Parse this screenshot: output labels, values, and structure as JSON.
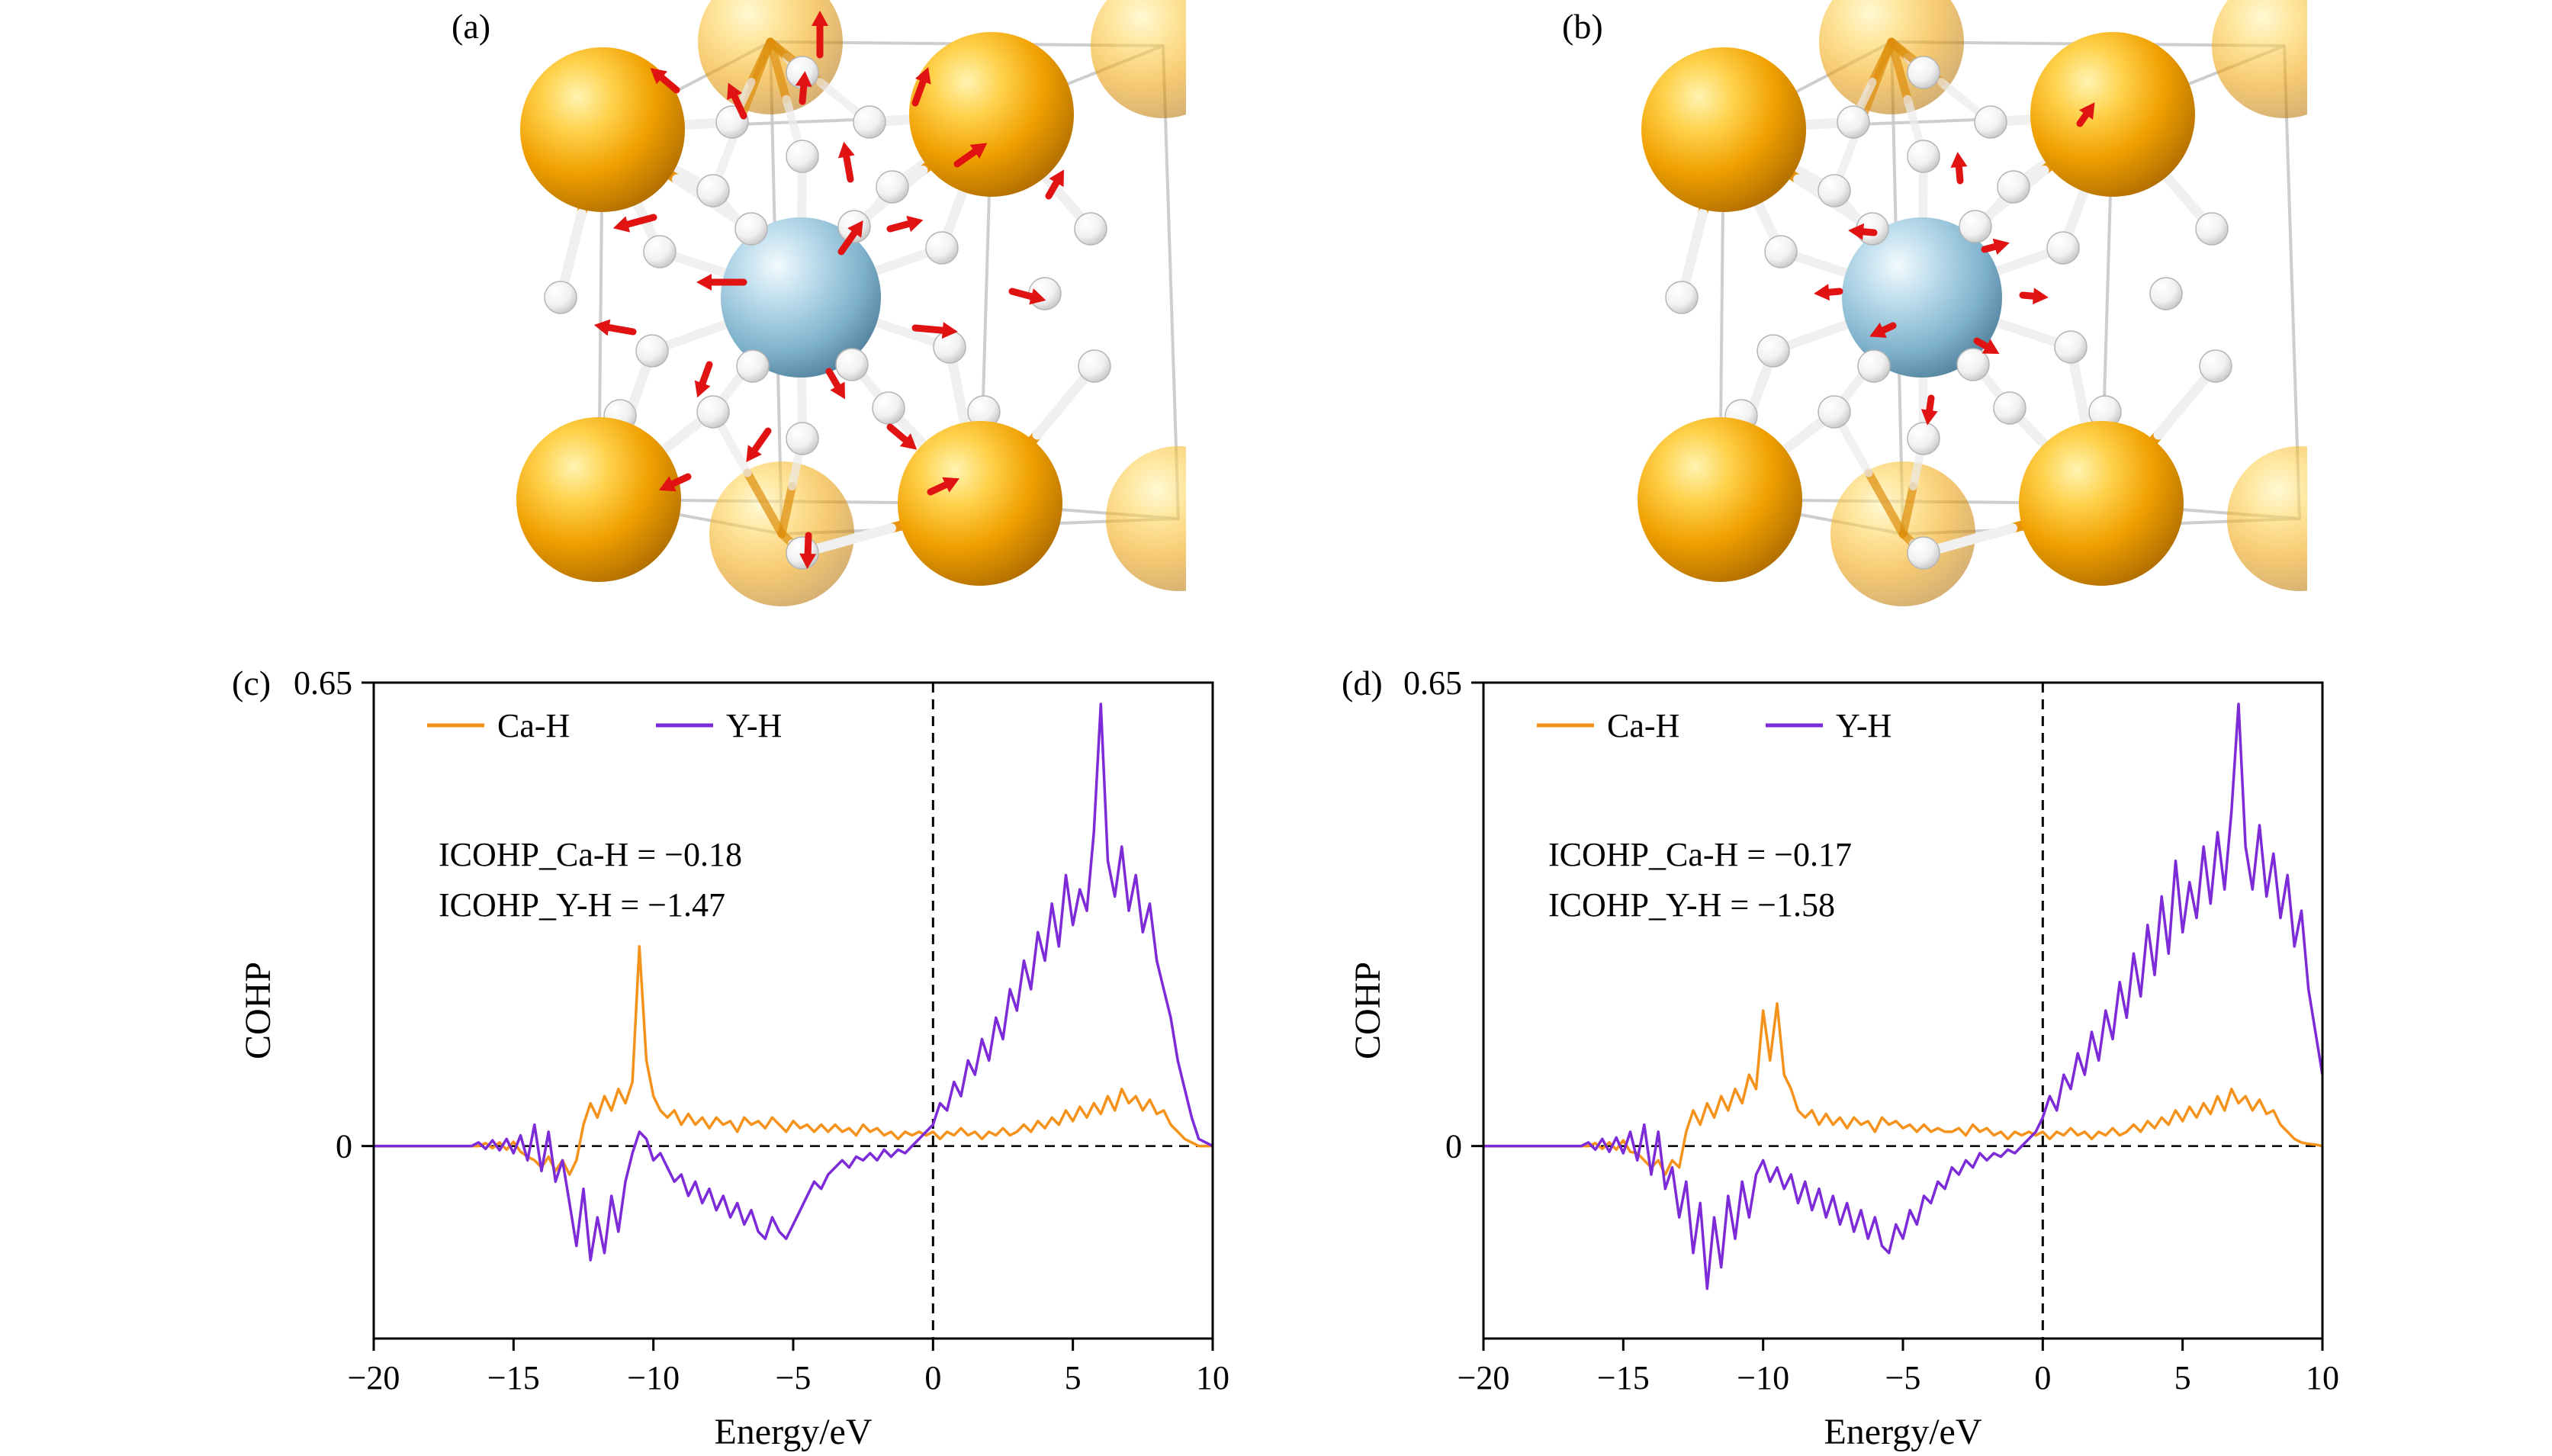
{
  "figure": {
    "background": "#FFFFFF"
  },
  "panels": {
    "a": {
      "label": "(a)"
    },
    "b": {
      "label": "(b)"
    }
  },
  "structures": {
    "atom_colors": {
      "ca": "#F0A000",
      "y": "#8FBFD9",
      "h": "#FFFFFF",
      "force_arrow": "#E01212",
      "frame": "#C9C9C9"
    },
    "shared_geometry": {
      "ca_front": [
        [
          235,
          170
        ],
        [
          745,
          150
        ],
        [
          230,
          655
        ],
        [
          730,
          660
        ]
      ],
      "ca_back": [
        [
          455,
          55
        ],
        [
          970,
          60
        ],
        [
          470,
          700
        ],
        [
          990,
          680
        ]
      ],
      "y_center": [
        495,
        390
      ],
      "h_atoms": [
        [
          497,
          205
        ],
        [
          380,
          250
        ],
        [
          615,
          245
        ],
        [
          310,
          330
        ],
        [
          680,
          325
        ],
        [
          300,
          460
        ],
        [
          690,
          455
        ],
        [
          380,
          540
        ],
        [
          610,
          535
        ],
        [
          497,
          575
        ],
        [
          430,
          300
        ],
        [
          565,
          297
        ],
        [
          432,
          480
        ],
        [
          562,
          478
        ],
        [
          497,
          95
        ],
        [
          180,
          390
        ],
        [
          815,
          385
        ],
        [
          497,
          725
        ],
        [
          255,
          240
        ],
        [
          740,
          235
        ],
        [
          258,
          545
        ],
        [
          735,
          540
        ],
        [
          875,
          300
        ],
        [
          880,
          480
        ],
        [
          585,
          160
        ],
        [
          405,
          160
        ]
      ],
      "radii": {
        "ca": 108,
        "ca_back": 95,
        "y": 105,
        "h": 21
      }
    },
    "a": {
      "arrows": [
        [
          520,
          72,
          90,
          58
        ],
        [
          645,
          135,
          70,
          50
        ],
        [
          420,
          152,
          115,
          48
        ],
        [
          332,
          118,
          140,
          45
        ],
        [
          700,
          215,
          35,
          48
        ],
        [
          560,
          235,
          100,
          50
        ],
        [
          302,
          285,
          195,
          55
        ],
        [
          420,
          370,
          180,
          62
        ],
        [
          548,
          330,
          55,
          50
        ],
        [
          612,
          300,
          15,
          45
        ],
        [
          275,
          435,
          170,
          52
        ],
        [
          645,
          430,
          355,
          56
        ],
        [
          375,
          478,
          250,
          46
        ],
        [
          532,
          487,
          300,
          42
        ],
        [
          452,
          565,
          235,
          50
        ],
        [
          612,
          560,
          320,
          46
        ],
        [
          347,
          625,
          205,
          42
        ],
        [
          665,
          645,
          25,
          42
        ],
        [
          505,
          702,
          268,
          44
        ],
        [
          772,
          382,
          345,
          46
        ],
        [
          497,
          133,
          85,
          40
        ],
        [
          820,
          257,
          60,
          40
        ]
      ]
    },
    "b": {
      "arrows": [
        [
          545,
          237,
          95,
          38
        ],
        [
          432,
          305,
          175,
          34
        ],
        [
          577,
          327,
          15,
          34
        ],
        [
          457,
          427,
          205,
          34
        ],
        [
          567,
          447,
          330,
          34
        ],
        [
          507,
          522,
          262,
          36
        ],
        [
          627,
          387,
          355,
          34
        ],
        [
          387,
          382,
          185,
          34
        ],
        [
          702,
          162,
          55,
          34
        ]
      ]
    }
  },
  "chart_data": [
    {
      "id": "chart-c",
      "panel_label": "(c)",
      "type": "line",
      "title": "",
      "xlabel": "Energy/eV",
      "ylabel": "COHP",
      "xlim": [
        -20,
        10
      ],
      "ylim": [
        -0.27,
        0.65
      ],
      "xticks": [
        -20,
        -15,
        -10,
        -5,
        0,
        5,
        10
      ],
      "xtick_labels": [
        "−20",
        "−15",
        "−10",
        "−5",
        "0",
        "5",
        "10"
      ],
      "yticks": [
        {
          "value": 0,
          "label": "0"
        },
        {
          "value": 0.65,
          "label": "0.65"
        }
      ],
      "grid": false,
      "legend_position": "top-left-inside",
      "reference_lines": {
        "vline_x": 0,
        "hline_y": 0
      },
      "legend": [
        {
          "name": "Ca-H",
          "color": "#F5921B"
        },
        {
          "name": "Y-H",
          "color": "#7D2BD8"
        }
      ],
      "annotations": [
        "ICOHP_Ca-H = −0.18",
        "ICOHP_Y-H = −1.47"
      ],
      "x": [
        -20,
        -18,
        -16.5,
        -16.25,
        -16,
        -15.75,
        -15.5,
        -15.25,
        -15,
        -14.75,
        -14.5,
        -14.25,
        -14,
        -13.75,
        -13.5,
        -13.25,
        -13,
        -12.75,
        -12.5,
        -12.25,
        -12,
        -11.75,
        -11.5,
        -11.25,
        -11,
        -10.75,
        -10.5,
        -10.25,
        -10,
        -9.75,
        -9.5,
        -9.25,
        -9,
        -8.75,
        -8.5,
        -8.25,
        -8,
        -7.75,
        -7.5,
        -7.25,
        -7,
        -6.75,
        -6.5,
        -6.25,
        -6,
        -5.75,
        -5.5,
        -5.25,
        -5,
        -4.75,
        -4.5,
        -4.25,
        -4,
        -3.75,
        -3.5,
        -3.25,
        -3,
        -2.75,
        -2.5,
        -2.25,
        -2,
        -1.75,
        -1.5,
        -1.25,
        -1,
        -0.75,
        -0.5,
        -0.25,
        0,
        0.25,
        0.5,
        0.75,
        1,
        1.25,
        1.5,
        1.75,
        2,
        2.25,
        2.5,
        2.75,
        3,
        3.25,
        3.5,
        3.75,
        4,
        4.25,
        4.5,
        4.75,
        5,
        5.25,
        5.5,
        5.75,
        6,
        6.25,
        6.5,
        6.75,
        7,
        7.25,
        7.5,
        7.75,
        8,
        8.25,
        8.5,
        8.75,
        9,
        9.25,
        9.5,
        9.75,
        10
      ],
      "series": [
        {
          "name": "Ca-H",
          "color": "#F5921B",
          "y": [
            0,
            0,
            0,
            0,
            0.004,
            -0.003,
            0.005,
            -0.005,
            0.006,
            -0.008,
            -0.015,
            -0.02,
            -0.03,
            -0.015,
            -0.035,
            -0.02,
            -0.04,
            -0.02,
            0.03,
            0.06,
            0.04,
            0.07,
            0.05,
            0.08,
            0.06,
            0.09,
            0.28,
            0.12,
            0.07,
            0.05,
            0.04,
            0.05,
            0.03,
            0.045,
            0.03,
            0.04,
            0.025,
            0.04,
            0.03,
            0.035,
            0.02,
            0.04,
            0.03,
            0.035,
            0.025,
            0.04,
            0.03,
            0.02,
            0.035,
            0.025,
            0.03,
            0.02,
            0.03,
            0.02,
            0.03,
            0.02,
            0.025,
            0.015,
            0.03,
            0.02,
            0.025,
            0.015,
            0.02,
            0.01,
            0.02,
            0.015,
            0.02,
            0.015,
            0.02,
            0.01,
            0.02,
            0.015,
            0.025,
            0.015,
            0.02,
            0.01,
            0.02,
            0.015,
            0.025,
            0.015,
            0.02,
            0.03,
            0.02,
            0.035,
            0.025,
            0.04,
            0.03,
            0.05,
            0.035,
            0.055,
            0.04,
            0.06,
            0.045,
            0.07,
            0.05,
            0.08,
            0.06,
            0.07,
            0.05,
            0.065,
            0.045,
            0.05,
            0.03,
            0.02,
            0.01,
            0.005,
            0,
            0,
            0
          ]
        },
        {
          "name": "Y-H",
          "color": "#7D2BD8",
          "y": [
            0,
            0,
            0,
            0.005,
            -0.004,
            0.008,
            -0.006,
            0.01,
            -0.01,
            0.015,
            -0.02,
            0.03,
            -0.035,
            0.02,
            -0.05,
            -0.02,
            -0.08,
            -0.14,
            -0.06,
            -0.16,
            -0.1,
            -0.15,
            -0.07,
            -0.12,
            -0.05,
            -0.01,
            0.02,
            0.01,
            -0.02,
            -0.01,
            -0.03,
            -0.05,
            -0.04,
            -0.07,
            -0.05,
            -0.08,
            -0.06,
            -0.09,
            -0.07,
            -0.1,
            -0.08,
            -0.11,
            -0.09,
            -0.12,
            -0.13,
            -0.1,
            -0.12,
            -0.13,
            -0.11,
            -0.09,
            -0.07,
            -0.05,
            -0.06,
            -0.04,
            -0.03,
            -0.02,
            -0.03,
            -0.015,
            -0.02,
            -0.01,
            -0.02,
            -0.005,
            -0.015,
            -0.005,
            -0.01,
            0,
            0.01,
            0.02,
            0.03,
            0.06,
            0.05,
            0.09,
            0.07,
            0.12,
            0.1,
            0.15,
            0.12,
            0.18,
            0.15,
            0.22,
            0.19,
            0.26,
            0.22,
            0.3,
            0.26,
            0.34,
            0.28,
            0.38,
            0.31,
            0.36,
            0.33,
            0.44,
            0.62,
            0.4,
            0.35,
            0.42,
            0.33,
            0.38,
            0.3,
            0.34,
            0.26,
            0.22,
            0.18,
            0.12,
            0.08,
            0.04,
            0.01,
            0.005,
            0
          ]
        }
      ]
    },
    {
      "id": "chart-d",
      "panel_label": "(d)",
      "type": "line",
      "title": "",
      "xlabel": "Energy/eV",
      "ylabel": "COHP",
      "xlim": [
        -20,
        10
      ],
      "ylim": [
        -0.27,
        0.65
      ],
      "xticks": [
        -20,
        -15,
        -10,
        -5,
        0,
        5,
        10
      ],
      "xtick_labels": [
        "−20",
        "−15",
        "−10",
        "−5",
        "0",
        "5",
        "10"
      ],
      "yticks": [
        {
          "value": 0,
          "label": "0"
        },
        {
          "value": 0.65,
          "label": "0.65"
        }
      ],
      "grid": false,
      "legend_position": "top-left-inside",
      "reference_lines": {
        "vline_x": 0,
        "hline_y": 0
      },
      "legend": [
        {
          "name": "Ca-H",
          "color": "#F5921B"
        },
        {
          "name": "Y-H",
          "color": "#7D2BD8"
        }
      ],
      "annotations": [
        "ICOHP_Ca-H = −0.17",
        "ICOHP_Y-H = −1.58"
      ],
      "x": [
        -20,
        -18,
        -16.5,
        -16.25,
        -16,
        -15.75,
        -15.5,
        -15.25,
        -15,
        -14.75,
        -14.5,
        -14.25,
        -14,
        -13.75,
        -13.5,
        -13.25,
        -13,
        -12.75,
        -12.5,
        -12.25,
        -12,
        -11.75,
        -11.5,
        -11.25,
        -11,
        -10.75,
        -10.5,
        -10.25,
        -10,
        -9.75,
        -9.5,
        -9.25,
        -9,
        -8.75,
        -8.5,
        -8.25,
        -8,
        -7.75,
        -7.5,
        -7.25,
        -7,
        -6.75,
        -6.5,
        -6.25,
        -6,
        -5.75,
        -5.5,
        -5.25,
        -5,
        -4.75,
        -4.5,
        -4.25,
        -4,
        -3.75,
        -3.5,
        -3.25,
        -3,
        -2.75,
        -2.5,
        -2.25,
        -2,
        -1.75,
        -1.5,
        -1.25,
        -1,
        -0.75,
        -0.5,
        -0.25,
        0,
        0.25,
        0.5,
        0.75,
        1,
        1.25,
        1.5,
        1.75,
        2,
        2.25,
        2.5,
        2.75,
        3,
        3.25,
        3.5,
        3.75,
        4,
        4.25,
        4.5,
        4.75,
        5,
        5.25,
        5.5,
        5.75,
        6,
        6.25,
        6.5,
        6.75,
        7,
        7.25,
        7.5,
        7.75,
        8,
        8.25,
        8.5,
        8.75,
        9,
        9.25,
        9.5,
        9.75,
        10
      ],
      "series": [
        {
          "name": "Ca-H",
          "color": "#F5921B",
          "y": [
            0,
            0,
            0,
            0,
            0.004,
            -0.004,
            0.005,
            -0.005,
            0.008,
            -0.008,
            -0.01,
            -0.02,
            -0.03,
            -0.02,
            -0.04,
            -0.02,
            -0.03,
            0.02,
            0.05,
            0.03,
            0.06,
            0.04,
            0.07,
            0.05,
            0.08,
            0.06,
            0.1,
            0.08,
            0.19,
            0.12,
            0.2,
            0.1,
            0.08,
            0.05,
            0.04,
            0.05,
            0.03,
            0.045,
            0.03,
            0.04,
            0.025,
            0.04,
            0.03,
            0.035,
            0.02,
            0.04,
            0.03,
            0.035,
            0.025,
            0.03,
            0.02,
            0.03,
            0.02,
            0.025,
            0.02,
            0.02,
            0.025,
            0.015,
            0.03,
            0.02,
            0.025,
            0.015,
            0.02,
            0.01,
            0.02,
            0.015,
            0.02,
            0.015,
            0.02,
            0.01,
            0.02,
            0.015,
            0.025,
            0.015,
            0.02,
            0.01,
            0.02,
            0.015,
            0.025,
            0.015,
            0.02,
            0.03,
            0.02,
            0.035,
            0.025,
            0.04,
            0.03,
            0.05,
            0.035,
            0.055,
            0.04,
            0.06,
            0.045,
            0.07,
            0.05,
            0.08,
            0.06,
            0.07,
            0.05,
            0.065,
            0.045,
            0.05,
            0.03,
            0.02,
            0.01,
            0.005,
            0.003,
            0.002,
            0
          ]
        },
        {
          "name": "Y-H",
          "color": "#7D2BD8",
          "y": [
            0,
            0,
            0,
            0.005,
            -0.005,
            0.01,
            -0.008,
            0.012,
            -0.01,
            0.02,
            -0.02,
            0.03,
            -0.04,
            0.02,
            -0.06,
            -0.03,
            -0.1,
            -0.05,
            -0.15,
            -0.08,
            -0.2,
            -0.1,
            -0.17,
            -0.07,
            -0.13,
            -0.05,
            -0.1,
            -0.04,
            -0.02,
            -0.05,
            -0.03,
            -0.06,
            -0.04,
            -0.08,
            -0.05,
            -0.09,
            -0.06,
            -0.1,
            -0.07,
            -0.11,
            -0.08,
            -0.12,
            -0.09,
            -0.13,
            -0.1,
            -0.14,
            -0.15,
            -0.11,
            -0.13,
            -0.09,
            -0.11,
            -0.07,
            -0.08,
            -0.05,
            -0.06,
            -0.03,
            -0.04,
            -0.02,
            -0.03,
            -0.01,
            -0.02,
            -0.01,
            -0.015,
            -0.005,
            -0.01,
            0,
            0.01,
            0.02,
            0.04,
            0.07,
            0.05,
            0.1,
            0.08,
            0.13,
            0.1,
            0.16,
            0.12,
            0.19,
            0.15,
            0.23,
            0.18,
            0.27,
            0.21,
            0.31,
            0.24,
            0.35,
            0.27,
            0.4,
            0.3,
            0.37,
            0.32,
            0.42,
            0.34,
            0.44,
            0.36,
            0.47,
            0.62,
            0.42,
            0.36,
            0.45,
            0.35,
            0.41,
            0.32,
            0.38,
            0.28,
            0.33,
            0.22,
            0.16,
            0.1
          ]
        }
      ]
    }
  ]
}
